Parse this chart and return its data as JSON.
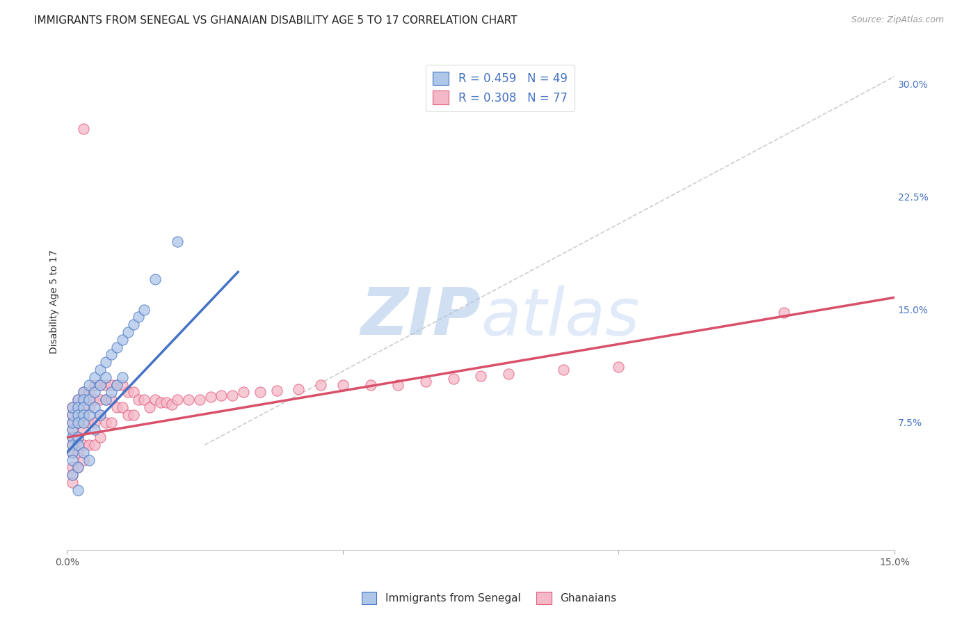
{
  "title": "IMMIGRANTS FROM SENEGAL VS GHANAIAN DISABILITY AGE 5 TO 17 CORRELATION CHART",
  "source": "Source: ZipAtlas.com",
  "ylabel": "Disability Age 5 to 17",
  "xlim": [
    0.0,
    0.15
  ],
  "ylim": [
    -0.01,
    0.32
  ],
  "color_blue_fill": "#aec6e8",
  "color_pink_fill": "#f5b8c8",
  "color_blue_edge": "#4472c4",
  "color_pink_edge": "#e05878",
  "line_blue": "#4472c4",
  "line_pink": "#d9506a",
  "line_dash": "#c0c0c0",
  "watermark_color": "#ccdff5",
  "grid_color": "#d8d8d8",
  "background_color": "#ffffff",
  "senegal_x": [
    0.001,
    0.001,
    0.001,
    0.001,
    0.001,
    0.001,
    0.001,
    0.001,
    0.001,
    0.002,
    0.002,
    0.002,
    0.002,
    0.002,
    0.002,
    0.002,
    0.002,
    0.003,
    0.003,
    0.003,
    0.003,
    0.003,
    0.003,
    0.004,
    0.004,
    0.004,
    0.004,
    0.005,
    0.005,
    0.005,
    0.005,
    0.006,
    0.006,
    0.006,
    0.007,
    0.007,
    0.007,
    0.008,
    0.008,
    0.009,
    0.009,
    0.01,
    0.01,
    0.011,
    0.012,
    0.013,
    0.014,
    0.016,
    0.02
  ],
  "senegal_y": [
    0.065,
    0.07,
    0.075,
    0.08,
    0.085,
    0.06,
    0.055,
    0.05,
    0.04,
    0.09,
    0.085,
    0.08,
    0.075,
    0.065,
    0.06,
    0.045,
    0.03,
    0.095,
    0.09,
    0.085,
    0.08,
    0.075,
    0.055,
    0.1,
    0.09,
    0.08,
    0.05,
    0.105,
    0.095,
    0.085,
    0.07,
    0.11,
    0.1,
    0.08,
    0.115,
    0.105,
    0.09,
    0.12,
    0.095,
    0.125,
    0.1,
    0.13,
    0.105,
    0.135,
    0.14,
    0.145,
    0.15,
    0.17,
    0.195
  ],
  "ghanaian_x": [
    0.001,
    0.001,
    0.001,
    0.001,
    0.001,
    0.001,
    0.001,
    0.001,
    0.001,
    0.001,
    0.002,
    0.002,
    0.002,
    0.002,
    0.002,
    0.002,
    0.003,
    0.003,
    0.003,
    0.003,
    0.003,
    0.003,
    0.004,
    0.004,
    0.004,
    0.004,
    0.005,
    0.005,
    0.005,
    0.005,
    0.006,
    0.006,
    0.006,
    0.006,
    0.007,
    0.007,
    0.007,
    0.008,
    0.008,
    0.008,
    0.009,
    0.009,
    0.01,
    0.01,
    0.011,
    0.011,
    0.012,
    0.012,
    0.013,
    0.014,
    0.015,
    0.016,
    0.017,
    0.018,
    0.019,
    0.02,
    0.022,
    0.024,
    0.026,
    0.028,
    0.03,
    0.032,
    0.035,
    0.038,
    0.042,
    0.046,
    0.05,
    0.055,
    0.06,
    0.065,
    0.07,
    0.075,
    0.08,
    0.09,
    0.1,
    0.13,
    0.003
  ],
  "ghanaian_y": [
    0.085,
    0.08,
    0.075,
    0.07,
    0.065,
    0.06,
    0.055,
    0.045,
    0.04,
    0.035,
    0.09,
    0.085,
    0.075,
    0.065,
    0.055,
    0.045,
    0.095,
    0.09,
    0.08,
    0.07,
    0.06,
    0.05,
    0.095,
    0.085,
    0.075,
    0.06,
    0.1,
    0.09,
    0.075,
    0.06,
    0.1,
    0.09,
    0.08,
    0.065,
    0.1,
    0.09,
    0.075,
    0.1,
    0.09,
    0.075,
    0.1,
    0.085,
    0.1,
    0.085,
    0.095,
    0.08,
    0.095,
    0.08,
    0.09,
    0.09,
    0.085,
    0.09,
    0.088,
    0.088,
    0.087,
    0.09,
    0.09,
    0.09,
    0.092,
    0.093,
    0.093,
    0.095,
    0.095,
    0.096,
    0.097,
    0.1,
    0.1,
    0.1,
    0.1,
    0.102,
    0.104,
    0.106,
    0.107,
    0.11,
    0.112,
    0.148,
    0.27
  ],
  "blue_line_x": [
    0.0,
    0.031
  ],
  "blue_line_y": [
    0.055,
    0.175
  ],
  "pink_line_x": [
    0.0,
    0.15
  ],
  "pink_line_y": [
    0.065,
    0.158
  ],
  "dash_line_x": [
    0.025,
    0.15
  ],
  "dash_line_y": [
    0.06,
    0.305
  ],
  "legend_r1": "R = 0.459   N = 49",
  "legend_r2": "R = 0.308   N = 77",
  "legend_label1": "Immigrants from Senegal",
  "legend_label2": "Ghanaians"
}
